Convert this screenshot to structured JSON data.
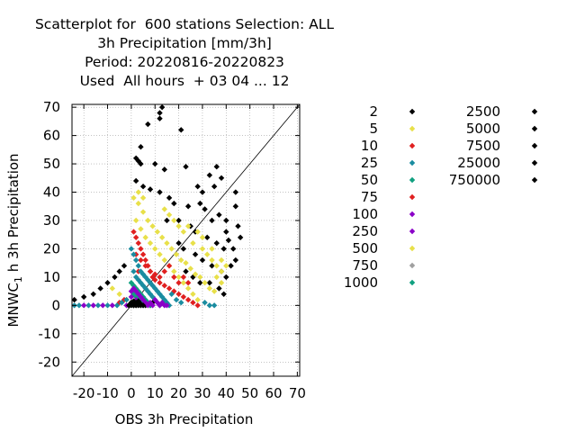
{
  "title_lines": [
    "Scatterplot for  600 stations Selection: ALL",
    "3h Precipitation [mm/3h]",
    "Period: 20220816-20220823",
    "Used  All hours  + 03 04 ... 12"
  ],
  "chart_data": {
    "type": "scatter",
    "xlabel": "OBS 3h Precipitation",
    "ylabel": "MNWC_1 h 3h Precipitation",
    "ylabel_main": "MNWC",
    "ylabel_sub": "1",
    "ylabel_rest": " h 3h Precipitation",
    "xlim": [
      -25,
      71
    ],
    "ylim": [
      -25,
      71
    ],
    "x_ticks": [
      -20,
      -10,
      0,
      10,
      20,
      30,
      40,
      50,
      60,
      70
    ],
    "x_tick_labels": [
      "-20",
      "-10",
      "0",
      "10",
      "20",
      "30",
      "40",
      "50",
      "60",
      "70"
    ],
    "y_ticks": [
      -20,
      -10,
      0,
      10,
      20,
      30,
      40,
      50,
      60,
      70
    ],
    "y_tick_labels": [
      "-20",
      "-10",
      "0",
      "10",
      "20",
      "30",
      "40",
      "50",
      "60",
      "70"
    ],
    "grid": true,
    "diagonal": true,
    "legend_placement": "right",
    "legend": [
      {
        "label": "2",
        "color": "#000000"
      },
      {
        "label": "5",
        "color": "#e8e04a"
      },
      {
        "label": "10",
        "color": "#e02020"
      },
      {
        "label": "25",
        "color": "#1a8ca0"
      },
      {
        "label": "50",
        "color": "#10a080"
      },
      {
        "label": "75",
        "color": "#e02020"
      },
      {
        "label": "100",
        "color": "#8b00c8"
      },
      {
        "label": "250",
        "color": "#8b00c8"
      },
      {
        "label": "500",
        "color": "#e8e04a"
      },
      {
        "label": "750",
        "color": "#a0a0a0"
      },
      {
        "label": "1000",
        "color": "#10a080"
      },
      {
        "label": "2500",
        "color": "#000000"
      },
      {
        "label": "5000",
        "color": "#000000"
      },
      {
        "label": "7500",
        "color": "#000000"
      },
      {
        "label": "25000",
        "color": "#000000"
      },
      {
        "label": "750000",
        "color": "#000000"
      }
    ],
    "series": [
      {
        "color": "#000000",
        "points": [
          [
            13,
            70
          ],
          [
            12,
            68
          ],
          [
            12,
            66
          ],
          [
            7,
            64
          ],
          [
            21,
            62
          ],
          [
            4,
            56
          ],
          [
            2,
            52
          ],
          [
            3,
            51
          ],
          [
            4,
            50
          ],
          [
            10,
            50
          ],
          [
            14,
            48
          ],
          [
            23,
            49
          ],
          [
            36,
            49
          ],
          [
            33,
            46
          ],
          [
            38,
            45
          ],
          [
            28,
            42
          ],
          [
            30,
            40
          ],
          [
            35,
            42
          ],
          [
            2,
            44
          ],
          [
            5,
            42
          ],
          [
            8,
            41
          ],
          [
            12,
            40
          ],
          [
            16,
            38
          ],
          [
            18,
            36
          ],
          [
            24,
            35
          ],
          [
            29,
            36
          ],
          [
            31,
            34
          ],
          [
            34,
            30
          ],
          [
            37,
            32
          ],
          [
            40,
            30
          ],
          [
            44,
            35
          ],
          [
            15,
            30
          ],
          [
            20,
            30
          ],
          [
            25,
            28
          ],
          [
            27,
            26
          ],
          [
            32,
            24
          ],
          [
            36,
            22
          ],
          [
            39,
            20
          ],
          [
            41,
            23
          ],
          [
            43,
            20
          ],
          [
            20,
            22
          ],
          [
            22,
            20
          ],
          [
            27,
            18
          ],
          [
            30,
            16
          ],
          [
            34,
            14
          ],
          [
            38,
            12
          ],
          [
            40,
            10
          ],
          [
            42,
            14
          ],
          [
            23,
            12
          ],
          [
            26,
            10
          ],
          [
            29,
            8
          ],
          [
            33,
            8
          ],
          [
            37,
            6
          ],
          [
            39,
            4
          ],
          [
            -24,
            2
          ],
          [
            -20,
            3
          ],
          [
            -16,
            4
          ],
          [
            -13,
            6
          ],
          [
            -10,
            8
          ],
          [
            -7,
            10
          ],
          [
            -5,
            12
          ],
          [
            -3,
            14
          ],
          [
            0,
            1
          ],
          [
            1,
            0
          ],
          [
            2,
            0
          ],
          [
            3,
            1
          ],
          [
            4,
            0
          ],
          [
            5,
            1
          ],
          [
            6,
            0
          ],
          [
            7,
            1
          ],
          [
            8,
            0
          ],
          [
            -1,
            0
          ],
          [
            9,
            1
          ],
          [
            44,
            40
          ],
          [
            45,
            28
          ],
          [
            46,
            24
          ],
          [
            44,
            16
          ],
          [
            40,
            26
          ]
        ]
      },
      {
        "color": "#e8e04a",
        "points": [
          [
            1,
            38
          ],
          [
            3,
            36
          ],
          [
            5,
            33
          ],
          [
            7,
            30
          ],
          [
            9,
            28
          ],
          [
            11,
            26
          ],
          [
            13,
            24
          ],
          [
            15,
            22
          ],
          [
            17,
            20
          ],
          [
            19,
            18
          ],
          [
            21,
            16
          ],
          [
            23,
            15
          ],
          [
            25,
            13
          ],
          [
            27,
            11
          ],
          [
            29,
            10
          ],
          [
            31,
            8
          ],
          [
            33,
            6
          ],
          [
            35,
            5
          ],
          [
            2,
            30
          ],
          [
            4,
            27
          ],
          [
            6,
            24
          ],
          [
            8,
            22
          ],
          [
            10,
            20
          ],
          [
            12,
            18
          ],
          [
            14,
            16
          ],
          [
            16,
            14
          ],
          [
            18,
            12
          ],
          [
            20,
            10
          ],
          [
            22,
            8
          ],
          [
            24,
            6
          ],
          [
            26,
            4
          ],
          [
            28,
            2
          ],
          [
            -8,
            6
          ],
          [
            -5,
            4
          ],
          [
            -2,
            2
          ],
          [
            30,
            20
          ],
          [
            32,
            18
          ],
          [
            34,
            16
          ],
          [
            36,
            14
          ],
          [
            38,
            12
          ],
          [
            30,
            24
          ],
          [
            34,
            20
          ],
          [
            38,
            16
          ],
          [
            40,
            14
          ],
          [
            26,
            22
          ],
          [
            28,
            26
          ],
          [
            24,
            28
          ],
          [
            22,
            26
          ],
          [
            20,
            28
          ],
          [
            18,
            30
          ],
          [
            16,
            32
          ],
          [
            14,
            34
          ],
          [
            3,
            40
          ],
          [
            5,
            38
          ],
          [
            36,
            10
          ],
          [
            38,
            8
          ]
        ]
      },
      {
        "color": "#e02020",
        "points": [
          [
            1,
            26
          ],
          [
            2,
            24
          ],
          [
            3,
            22
          ],
          [
            4,
            20
          ],
          [
            5,
            18
          ],
          [
            6,
            16
          ],
          [
            7,
            14
          ],
          [
            8,
            12
          ],
          [
            9,
            10
          ],
          [
            10,
            9
          ],
          [
            12,
            8
          ],
          [
            14,
            7
          ],
          [
            16,
            6
          ],
          [
            18,
            5
          ],
          [
            20,
            4
          ],
          [
            22,
            3
          ],
          [
            24,
            2
          ],
          [
            26,
            1
          ],
          [
            28,
            0
          ],
          [
            2,
            18
          ],
          [
            4,
            16
          ],
          [
            6,
            14
          ],
          [
            8,
            12
          ],
          [
            10,
            11
          ],
          [
            12,
            10
          ],
          [
            14,
            12
          ],
          [
            16,
            14
          ],
          [
            18,
            10
          ],
          [
            20,
            8
          ],
          [
            22,
            10
          ],
          [
            24,
            8
          ],
          [
            3,
            12
          ],
          [
            -3,
            2
          ],
          [
            -5,
            1
          ]
        ]
      },
      {
        "color": "#1a8ca0",
        "points": [
          [
            0,
            20
          ],
          [
            1,
            18
          ],
          [
            2,
            16
          ],
          [
            3,
            14
          ],
          [
            4,
            12
          ],
          [
            5,
            11
          ],
          [
            6,
            10
          ],
          [
            7,
            9
          ],
          [
            8,
            8
          ],
          [
            9,
            7
          ],
          [
            10,
            6
          ],
          [
            11,
            5
          ],
          [
            12,
            4
          ],
          [
            13,
            3
          ],
          [
            14,
            2
          ],
          [
            15,
            1
          ],
          [
            16,
            0
          ],
          [
            1,
            12
          ],
          [
            2,
            10
          ],
          [
            3,
            9
          ],
          [
            4,
            8
          ],
          [
            5,
            7
          ],
          [
            6,
            6
          ],
          [
            7,
            5
          ],
          [
            8,
            4
          ],
          [
            9,
            3
          ],
          [
            10,
            2
          ],
          [
            11,
            1
          ],
          [
            12,
            0
          ],
          [
            -2,
            2
          ],
          [
            -4,
            1
          ],
          [
            -6,
            0
          ],
          [
            -10,
            0
          ],
          [
            -14,
            0
          ],
          [
            -18,
            0
          ],
          [
            -22,
            0
          ],
          [
            -24,
            0
          ],
          [
            17,
            4
          ],
          [
            19,
            2
          ],
          [
            21,
            1
          ],
          [
            33,
            0
          ],
          [
            35,
            0
          ],
          [
            31,
            1
          ]
        ]
      },
      {
        "color": "#10a080",
        "points": [
          [
            0,
            8
          ],
          [
            1,
            7
          ],
          [
            2,
            6
          ],
          [
            3,
            5
          ],
          [
            4,
            4
          ],
          [
            5,
            3
          ],
          [
            6,
            2
          ],
          [
            7,
            1
          ],
          [
            8,
            0
          ],
          [
            1,
            4
          ],
          [
            2,
            3
          ],
          [
            3,
            2
          ],
          [
            4,
            1
          ],
          [
            5,
            0
          ]
        ]
      },
      {
        "color": "#8b00c8",
        "points": [
          [
            1,
            6
          ],
          [
            2,
            5
          ],
          [
            3,
            4
          ],
          [
            4,
            3
          ],
          [
            5,
            2
          ],
          [
            6,
            1
          ],
          [
            7,
            0
          ],
          [
            8,
            1
          ],
          [
            9,
            0
          ],
          [
            10,
            2
          ],
          [
            11,
            1
          ],
          [
            12,
            0
          ],
          [
            13,
            1
          ],
          [
            14,
            0
          ],
          [
            15,
            0
          ],
          [
            -16,
            0
          ],
          [
            -12,
            0
          ],
          [
            -8,
            0
          ],
          [
            -20,
            0
          ],
          [
            -2,
            0
          ],
          [
            0,
            3
          ],
          [
            0,
            5
          ],
          [
            2,
            2
          ]
        ]
      },
      {
        "color": "#000000",
        "points": [
          [
            0,
            0
          ],
          [
            1,
            0.5
          ],
          [
            2,
            0
          ],
          [
            0,
            1
          ],
          [
            1,
            1.5
          ],
          [
            2,
            1
          ],
          [
            3,
            0
          ],
          [
            -1,
            0
          ],
          [
            0,
            0.5
          ],
          [
            1,
            0
          ],
          [
            4,
            0.5
          ],
          [
            5,
            0
          ],
          [
            3,
            1.5
          ]
        ]
      }
    ]
  }
}
